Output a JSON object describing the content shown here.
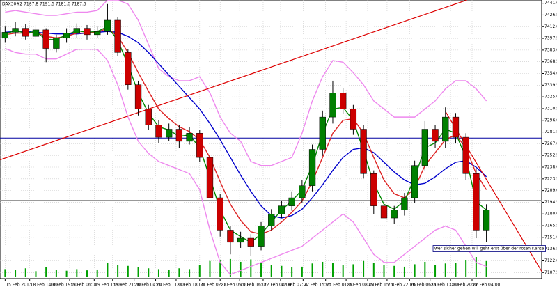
{
  "chart_data": {
    "type": "candlestick",
    "title": "DAX30#2 7187.8 7191.5 7181.0 7187.5",
    "annotation": "wer sicher gehen will geht erst über der roten Kante",
    "xlim": [
      -0.5,
      52.4
    ],
    "ylim": [
      7100,
      7445
    ],
    "volume_ylim": [
      0,
      100
    ],
    "grid": true,
    "up_color": "#008000",
    "down_color": "#cc0000",
    "volume_color": "#00a000",
    "xticks": [
      {
        "value": 0,
        "label": "15 Feb 2013"
      },
      {
        "value": 2.4,
        "label": "18 Feb 14:00"
      },
      {
        "value": 4.3,
        "label": "18 Feb 19:00"
      },
      {
        "value": 6.3,
        "label": "19 Feb 06:00"
      },
      {
        "value": 8.7,
        "label": "19 Feb 13:00"
      },
      {
        "value": 10.5,
        "label": "19 Feb 21:00"
      },
      {
        "value": 12.6,
        "label": "20 Feb 04:00"
      },
      {
        "value": 14.7,
        "label": "20 Feb 11:00"
      },
      {
        "value": 16.7,
        "label": "20 Feb 18:00"
      },
      {
        "value": 19,
        "label": "21 Feb 02:00"
      },
      {
        "value": 21,
        "label": "21 Feb 09:00"
      },
      {
        "value": 22.9,
        "label": "21 Feb 16:00"
      },
      {
        "value": 25.2,
        "label": "22 Feb 00:00"
      },
      {
        "value": 26.9,
        "label": "22 Feb 07:00"
      },
      {
        "value": 29.1,
        "label": "22 Feb 15:00"
      },
      {
        "value": 31.3,
        "label": "25 Feb 01:00"
      },
      {
        "value": 33.3,
        "label": "25 Feb 08:00"
      },
      {
        "value": 35.4,
        "label": "25 Feb 15:00"
      },
      {
        "value": 37.3,
        "label": "25 Feb 22:00"
      },
      {
        "value": 39.5,
        "label": "26 Feb 06:00"
      },
      {
        "value": 41.5,
        "label": "26 Feb 13:00"
      },
      {
        "value": 43.5,
        "label": "26 Feb 20:00"
      },
      {
        "value": 45.6,
        "label": "27 Feb 04:00"
      }
    ],
    "yticks": [
      {
        "value": 7441,
        "label": "7441.0"
      },
      {
        "value": 7426.5,
        "label": "7426.5"
      },
      {
        "value": 7412,
        "label": "7412.0"
      },
      {
        "value": 7397.5,
        "label": "7397.5"
      },
      {
        "value": 7383,
        "label": "7383.0"
      },
      {
        "value": 7368.5,
        "label": "7368.5"
      },
      {
        "value": 7354,
        "label": "7354.0"
      },
      {
        "value": 7339.5,
        "label": "7339.5"
      },
      {
        "value": 7325,
        "label": "7325.0"
      },
      {
        "value": 7310.5,
        "label": "7310.5"
      },
      {
        "value": 7296,
        "label": "7296.0"
      },
      {
        "value": 7281.5,
        "label": "7281.5"
      },
      {
        "value": 7267,
        "label": "7267.0"
      },
      {
        "value": 7252.5,
        "label": "7252.5"
      },
      {
        "value": 7238,
        "label": "7238.0"
      },
      {
        "value": 7223.5,
        "label": "7223.5"
      },
      {
        "value": 7209,
        "label": "7209.0"
      },
      {
        "value": 7194.5,
        "label": "7194.5"
      },
      {
        "value": 7180,
        "label": "7180.0"
      },
      {
        "value": 7165.5,
        "label": "7165.5"
      },
      {
        "value": 7151,
        "label": "7151.0"
      },
      {
        "value": 7136.5,
        "label": "7136.5"
      },
      {
        "value": 7122,
        "label": "7122.0"
      },
      {
        "value": 7107.5,
        "label": "7107.5"
      }
    ],
    "open": [
      7398,
      7405,
      7410,
      7400,
      7408,
      7385,
      7398,
      7404,
      7410,
      7402,
      7406,
      7420,
      7380,
      7340,
      7310,
      7290,
      7275,
      7285,
      7270,
      7280,
      7250,
      7200,
      7160,
      7145,
      7150,
      7140,
      7165,
      7180,
      7190,
      7200,
      7215,
      7260,
      7300,
      7330,
      7310,
      7285,
      7230,
      7190,
      7175,
      7185,
      7200,
      7240,
      7285,
      7270,
      7300,
      7275,
      7230,
      7160
    ],
    "high": [
      7412,
      7418,
      7415,
      7414,
      7410,
      7402,
      7410,
      7416,
      7414,
      7412,
      7440,
      7424,
      7384,
      7345,
      7315,
      7296,
      7292,
      7290,
      7288,
      7284,
      7254,
      7205,
      7165,
      7158,
      7155,
      7170,
      7186,
      7196,
      7208,
      7222,
      7266,
      7308,
      7345,
      7336,
      7315,
      7290,
      7234,
      7195,
      7190,
      7206,
      7246,
      7295,
      7290,
      7312,
      7305,
      7280,
      7236,
      7192
    ],
    "low": [
      7392,
      7400,
      7396,
      7396,
      7368,
      7380,
      7392,
      7398,
      7396,
      7398,
      7402,
      7376,
      7334,
      7302,
      7284,
      7268,
      7270,
      7262,
      7266,
      7244,
      7192,
      7152,
      7130,
      7138,
      7128,
      7135,
      7160,
      7175,
      7184,
      7194,
      7208,
      7252,
      7292,
      7304,
      7278,
      7224,
      7180,
      7164,
      7168,
      7178,
      7194,
      7234,
      7262,
      7262,
      7268,
      7222,
      7150,
      7145
    ],
    "close": [
      7405,
      7410,
      7400,
      7408,
      7385,
      7398,
      7404,
      7410,
      7402,
      7406,
      7420,
      7380,
      7340,
      7310,
      7290,
      7275,
      7285,
      7270,
      7280,
      7250,
      7200,
      7160,
      7145,
      7150,
      7140,
      7165,
      7180,
      7190,
      7200,
      7215,
      7260,
      7300,
      7330,
      7310,
      7285,
      7230,
      7190,
      7175,
      7185,
      7200,
      7240,
      7285,
      7270,
      7300,
      7275,
      7230,
      7160,
      7185
    ],
    "volume": [
      20,
      18,
      22,
      15,
      25,
      18,
      16,
      20,
      17,
      19,
      35,
      30,
      28,
      25,
      22,
      20,
      18,
      22,
      20,
      30,
      40,
      42,
      45,
      38,
      44,
      35,
      30,
      28,
      25,
      26,
      34,
      38,
      36,
      30,
      32,
      40,
      36,
      30,
      28,
      26,
      32,
      38,
      30,
      34,
      36,
      42,
      50,
      40
    ],
    "series": [
      {
        "color": "#ee88ee",
        "values": [
          7430,
          7432,
          7430,
          7428,
          7426,
          7426,
          7428,
          7430,
          7430,
          7432,
          7445,
          7445,
          7440,
          7420,
          7390,
          7360,
          7350,
          7345,
          7345,
          7350,
          7330,
          7300,
          7280,
          7270,
          7245,
          7240,
          7240,
          7245,
          7250,
          7280,
          7320,
          7350,
          7370,
          7368,
          7355,
          7340,
          7320,
          7310,
          7300,
          7300,
          7300,
          7310,
          7320,
          7335,
          7345,
          7345,
          7335,
          7320
        ]
      },
      {
        "color": "#ee88ee",
        "values": [
          7385,
          7380,
          7378,
          7378,
          7372,
          7372,
          7378,
          7384,
          7384,
          7384,
          7370,
          7340,
          7300,
          7270,
          7255,
          7245,
          7240,
          7235,
          7230,
          7210,
          7160,
          7120,
          7105,
          7110,
          7115,
          7120,
          7125,
          7130,
          7135,
          7140,
          7150,
          7160,
          7170,
          7180,
          7170,
          7150,
          7130,
          7120,
          7120,
          7130,
          7140,
          7150,
          7160,
          7165,
          7160,
          7140,
          7120,
          7115
        ]
      },
      {
        "color": "#0000cc",
        "values": [
          7405,
          7406,
          7406,
          7405,
          7404,
          7403,
          7403,
          7403,
          7404,
          7405,
          7406,
          7405,
          7400,
          7392,
          7380,
          7366,
          7352,
          7338,
          7324,
          7310,
          7292,
          7272,
          7250,
          7228,
          7208,
          7190,
          7178,
          7175,
          7178,
          7186,
          7200,
          7216,
          7234,
          7250,
          7260,
          7262,
          7256,
          7244,
          7232,
          7222,
          7216,
          7218,
          7226,
          7236,
          7244,
          7246,
          7238,
          7226
        ]
      },
      {
        "color": "#dd2222",
        "values": [
          7402,
          7404,
          7404,
          7405,
          7400,
          7398,
          7400,
          7404,
          7404,
          7405,
          7410,
          7400,
          7380,
          7355,
          7332,
          7310,
          7298,
          7288,
          7282,
          7272,
          7250,
          7220,
          7192,
          7172,
          7158,
          7155,
          7160,
          7170,
          7182,
          7196,
          7220,
          7250,
          7280,
          7296,
          7298,
          7280,
          7250,
          7222,
          7205,
          7200,
          7212,
          7240,
          7256,
          7272,
          7278,
          7262,
          7230,
          7210
        ]
      },
      {
        "color": "#008800",
        "values": [
          7403,
          7407,
          7404,
          7406,
          7396,
          7396,
          7402,
          7407,
          7405,
          7406,
          7412,
          7395,
          7365,
          7330,
          7305,
          7288,
          7284,
          7276,
          7278,
          7262,
          7225,
          7185,
          7160,
          7152,
          7145,
          7155,
          7170,
          7185,
          7196,
          7210,
          7240,
          7280,
          7310,
          7312,
          7296,
          7258,
          7218,
          7192,
          7186,
          7196,
          7225,
          7262,
          7268,
          7285,
          7280,
          7250,
          7195,
          7185
        ]
      }
    ],
    "trendlines": [
      {
        "color": "#dd0000",
        "x": [
          -0.5,
          45.1
        ],
        "values": [
          7247,
          7445
        ]
      },
      {
        "color": "#dd0000",
        "x": [
          43,
          52.4
        ],
        "values": [
          7307,
          7109
        ]
      }
    ],
    "hlines": [
      {
        "color": "#0000a0",
        "value": 7274
      },
      {
        "color": "#999999",
        "value": 7197
      }
    ]
  }
}
